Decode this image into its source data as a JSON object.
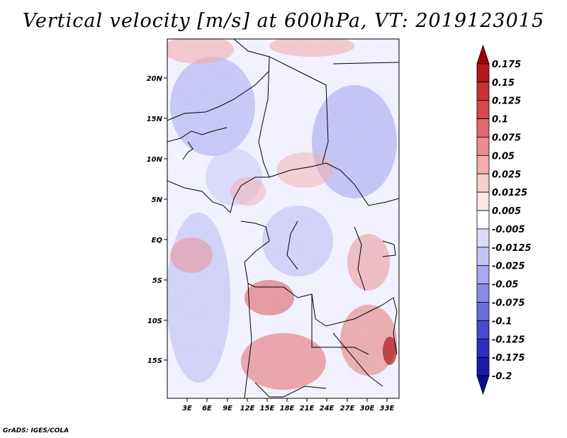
{
  "title": "Vertical velocity [m/s] at 600hPa, VT: 2019123015",
  "credit": "GrADS: IGES/COLA",
  "map": {
    "lon_labels": [
      "3E",
      "6E",
      "9E",
      "12E",
      "15E",
      "18E",
      "21E",
      "24E",
      "27E",
      "30E",
      "33E"
    ],
    "lat_labels": [
      "20N",
      "15N",
      "10N",
      "5N",
      "EQ",
      "5S",
      "10S",
      "15S"
    ]
  },
  "colorbar": {
    "labels": [
      "0.175",
      "0.15",
      "0.125",
      "0.1",
      "0.075",
      "0.05",
      "0.025",
      "0.0125",
      "0.005",
      "-0.005",
      "-0.0125",
      "-0.025",
      "-0.05",
      "-0.075",
      "-0.1",
      "-0.125",
      "-0.175",
      "-0.2"
    ],
    "colors": [
      "#a00000",
      "#b41818",
      "#c83232",
      "#d84646",
      "#e26a6a",
      "#ea8c8c",
      "#f2aeae",
      "#f8cdcd",
      "#fce6e6",
      "#ffffff",
      "#dcdcfa",
      "#c4c4f4",
      "#a8a8ee",
      "#8a8ae6",
      "#6c6cdc",
      "#4a4ad0",
      "#2e2ec0",
      "#1a1aaa",
      "#0a0a90"
    ]
  }
}
